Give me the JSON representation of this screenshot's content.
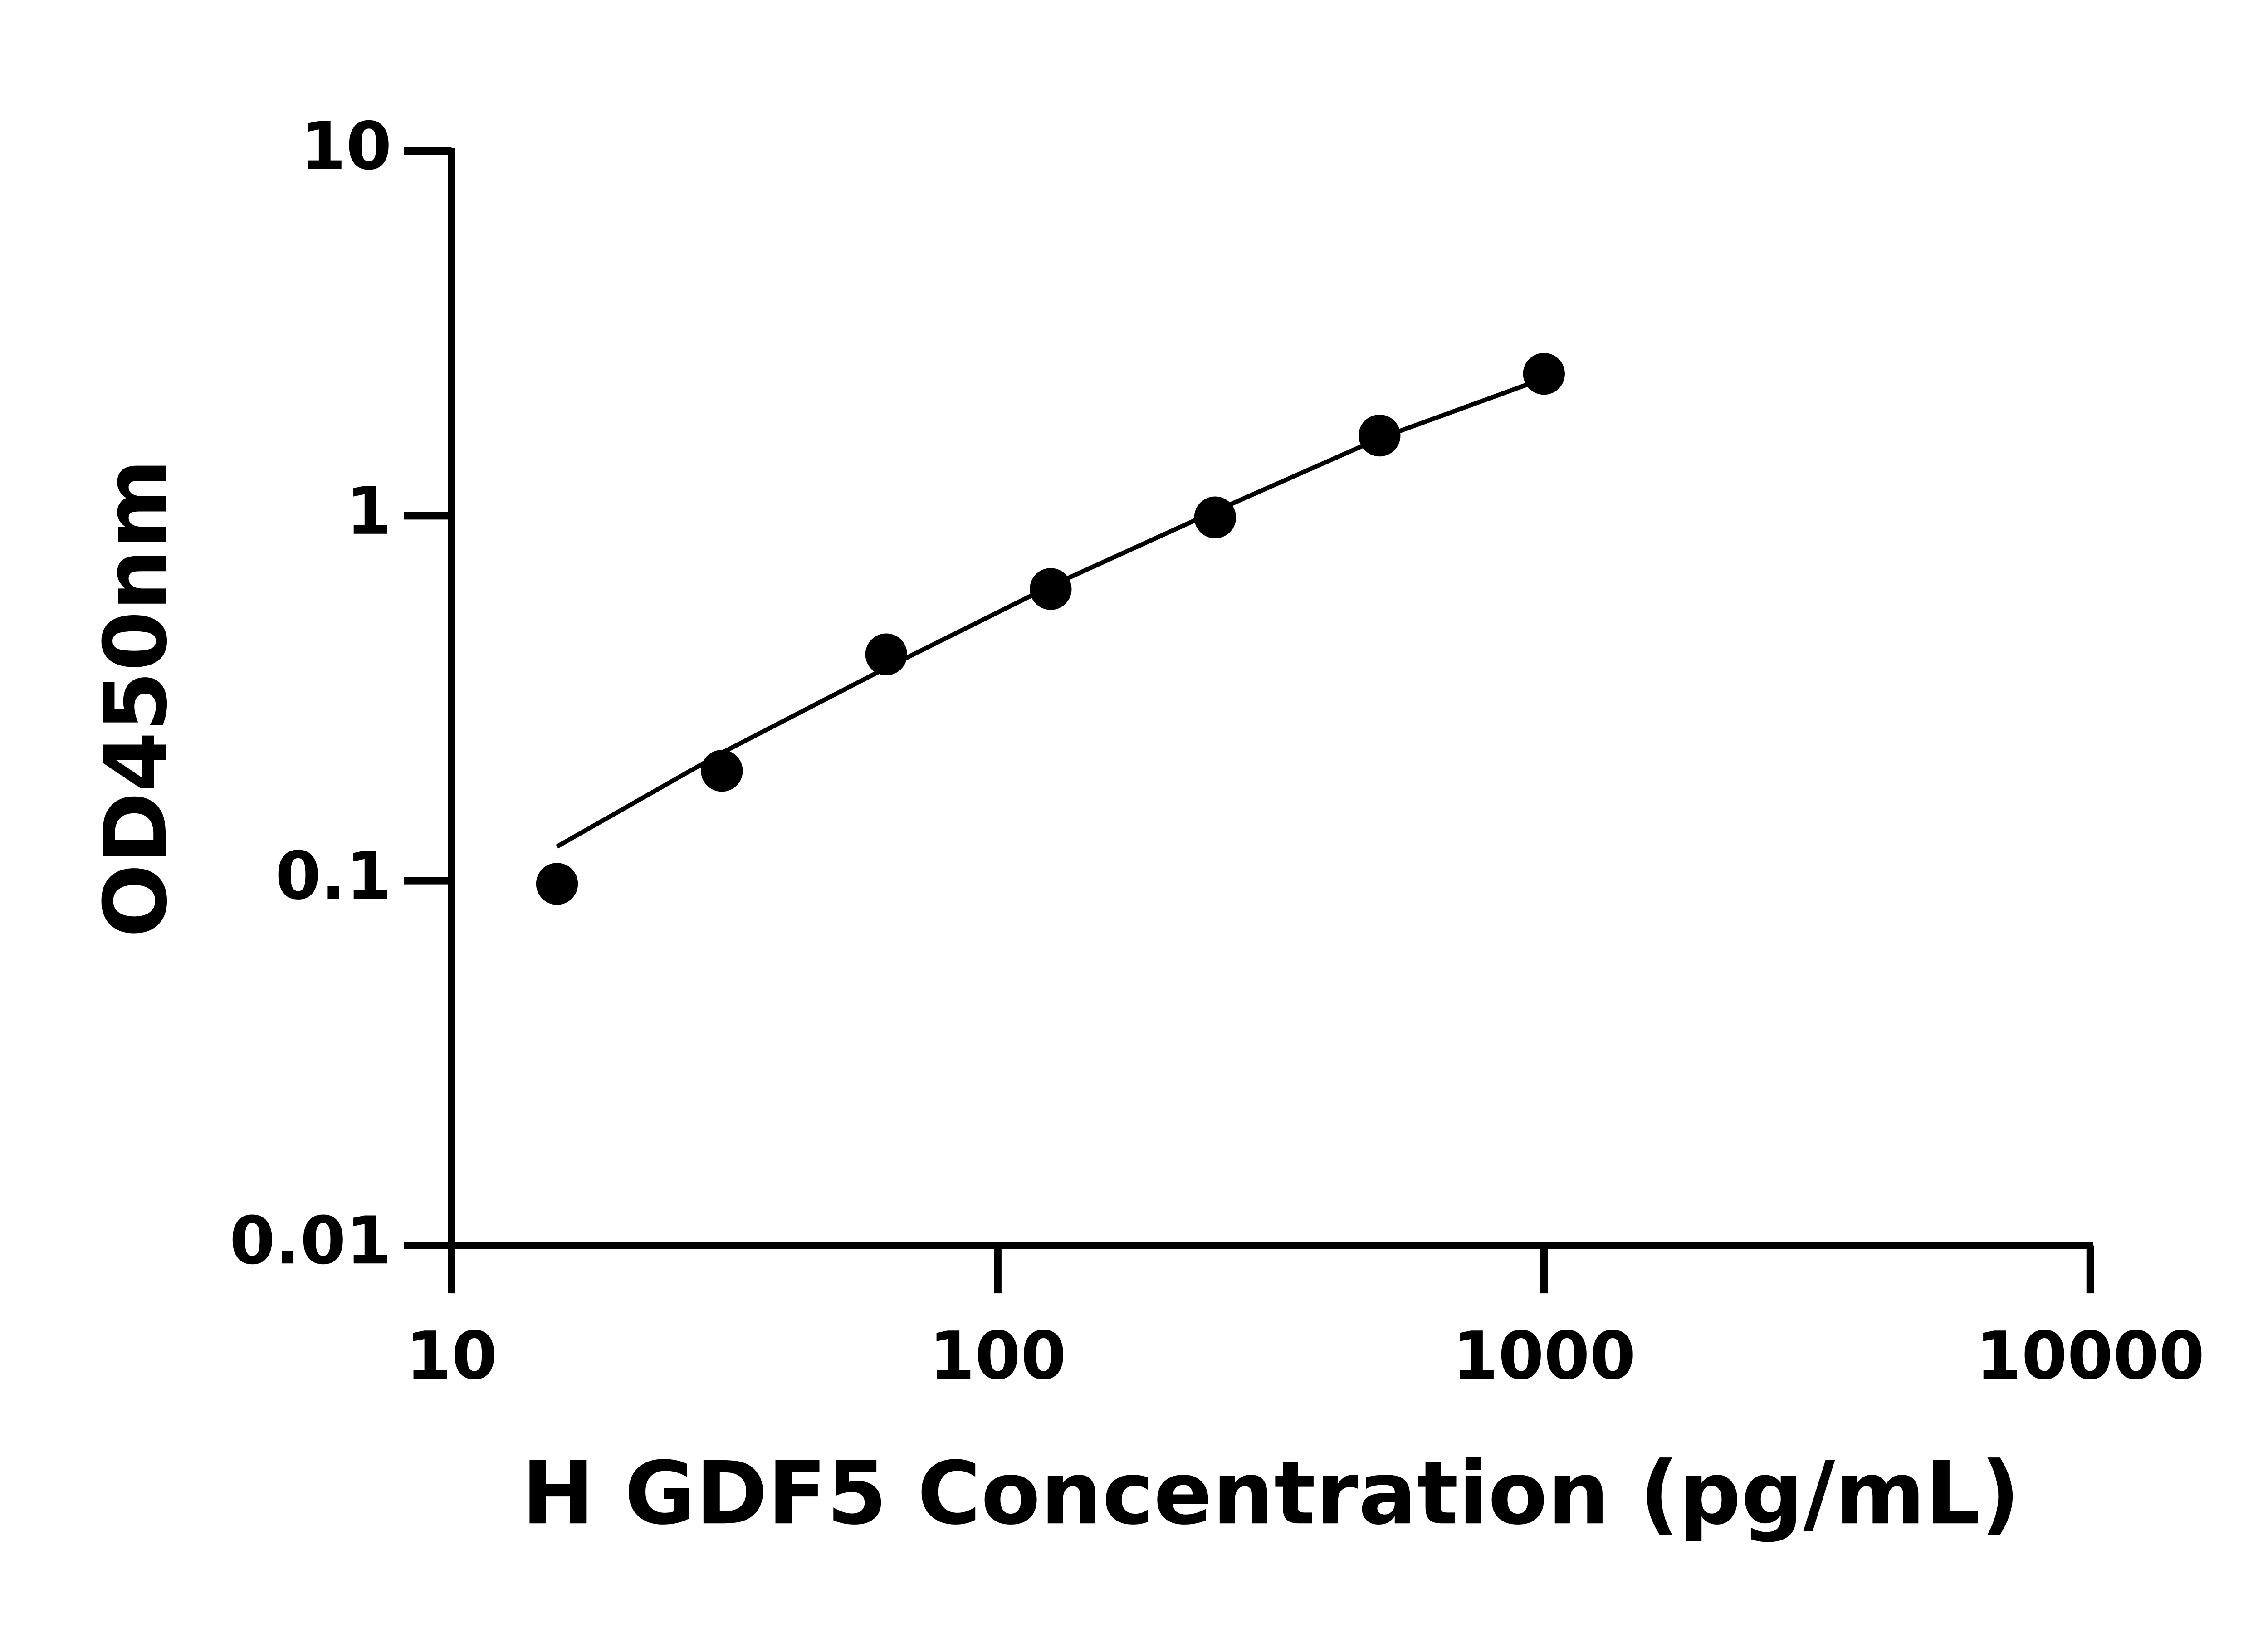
{
  "chart_data": {
    "type": "scatter",
    "x_label": "H GDF5 Concentration (pg/mL)",
    "y_label": "OD450nm",
    "x": [
      15.6,
      31.25,
      62.5,
      125,
      250,
      500,
      1000
    ],
    "series": [
      {
        "type": "scatter",
        "color": "#000000",
        "values": [
          0.098,
          0.2,
          0.417,
          0.63,
          0.99,
          1.66,
          2.45
        ]
      },
      {
        "type": "line",
        "color": "#000000",
        "values": [
          0.124,
          0.224,
          0.383,
          0.642,
          1.03,
          1.63,
          2.38
        ]
      }
    ],
    "xlog": true,
    "ylog": true,
    "xlim": [
      10,
      10000
    ],
    "ylim": [
      0.01,
      10
    ],
    "xticks": [
      10,
      100,
      1000,
      10000
    ],
    "yticks": [
      0.01,
      0.1,
      1,
      10
    ]
  }
}
